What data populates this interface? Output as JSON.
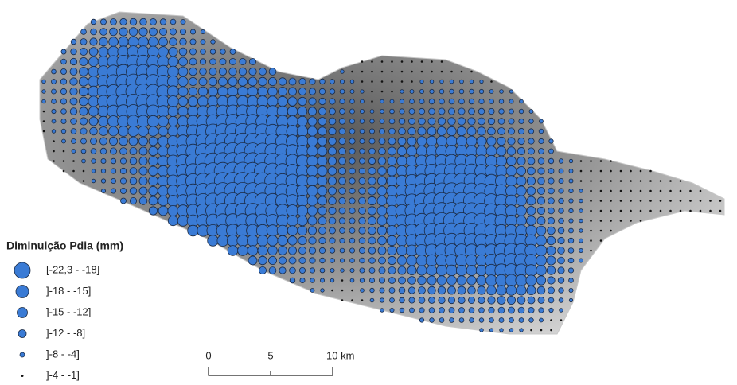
{
  "legend": {
    "title": "Diminuição Pdia (mm)",
    "items": [
      "[-22,3 - -18]",
      "]-18 - -15]",
      "]-15 - -12]",
      "]-12 - -8]",
      "]-8 - -4]",
      "]-4 - -1]"
    ]
  },
  "scale_bar": {
    "labels": [
      "0",
      "5",
      "10 km"
    ]
  }
}
